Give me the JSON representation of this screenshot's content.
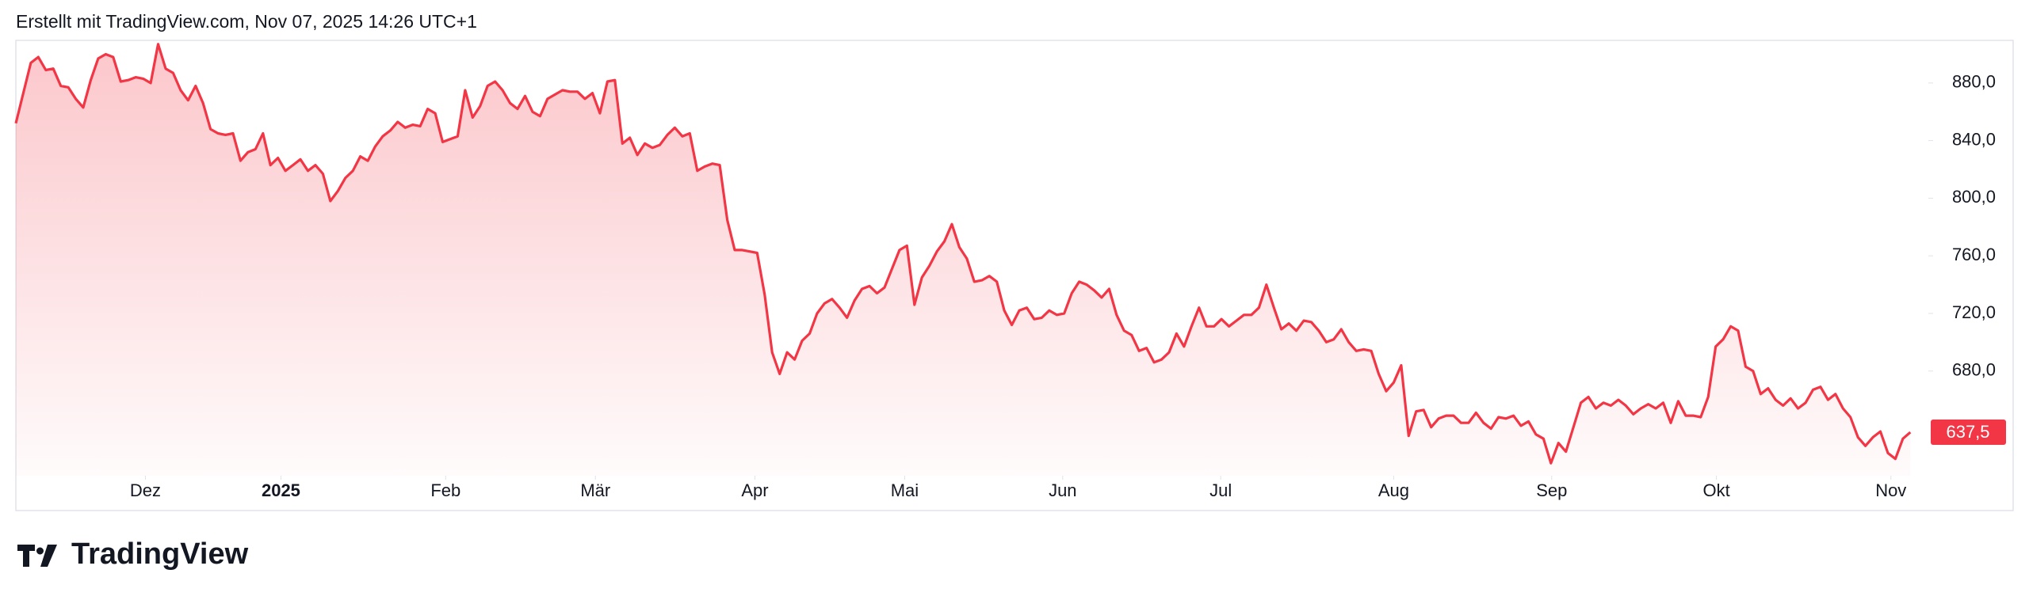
{
  "header": "Erstellt mit TradingView.com, Nov 07, 2025 14:26 UTC+1",
  "brand": "TradingView",
  "chart_data": {
    "type": "area",
    "color": "#f23645",
    "values": [
      852,
      873,
      894,
      898,
      889,
      890,
      878,
      877,
      869,
      863,
      882,
      897,
      900,
      898,
      881,
      882,
      884,
      883,
      880,
      907,
      890,
      887,
      875,
      868,
      878,
      866,
      848,
      845,
      844,
      845,
      826,
      832,
      834,
      845,
      823,
      828,
      819,
      823,
      827,
      819,
      823,
      817,
      798,
      805,
      814,
      819,
      829,
      826,
      836,
      843,
      847,
      853,
      849,
      851,
      850,
      862,
      859,
      839,
      841,
      843,
      875,
      856,
      864,
      878,
      881,
      875,
      866,
      862,
      871,
      860,
      857,
      869,
      872,
      875,
      874,
      874,
      869,
      873,
      859,
      881,
      882,
      838,
      842,
      830,
      838,
      835,
      837,
      844,
      849,
      843,
      845,
      819,
      822,
      824,
      823,
      785,
      764,
      764,
      763,
      762,
      733,
      693,
      678,
      693,
      688,
      701,
      706,
      720,
      727,
      730,
      724,
      717,
      729,
      737,
      739,
      734,
      738,
      751,
      764,
      767,
      726,
      745,
      753,
      763,
      770,
      782,
      766,
      758,
      742,
      743,
      746,
      742,
      722,
      712,
      722,
      724,
      716,
      717,
      722,
      719,
      720,
      734,
      742,
      740,
      736,
      731,
      737,
      719,
      708,
      705,
      694,
      696,
      686,
      688,
      693,
      706,
      697,
      711,
      724,
      711,
      711,
      716,
      711,
      715,
      719,
      719,
      724,
      740,
      724,
      709,
      713,
      708,
      715,
      714,
      708,
      700,
      702,
      709,
      700,
      694,
      695,
      694,
      678,
      666,
      672,
      684,
      635,
      652,
      653,
      641,
      647,
      649,
      649,
      644,
      644,
      651,
      644,
      640,
      648,
      647,
      649,
      642,
      645,
      636,
      633,
      616,
      630,
      624,
      641,
      658,
      662,
      654,
      658,
      656,
      660,
      656,
      650,
      654,
      657,
      654,
      658,
      644,
      659,
      649,
      649,
      648,
      662,
      697,
      702,
      711,
      708,
      683,
      680,
      664,
      668,
      660,
      656,
      661,
      654,
      658,
      667,
      669,
      660,
      664,
      654,
      648,
      634,
      628,
      634,
      638,
      623,
      619,
      633,
      637.5
    ],
    "last_label": "637,5",
    "xlim": [
      0,
      255.4
    ],
    "xticks": [
      {
        "value": 17.3,
        "label": "Dez"
      },
      {
        "value": 35.4,
        "label": "2025"
      },
      {
        "value": 57.4,
        "label": "Feb"
      },
      {
        "value": 77.4,
        "label": "Mär"
      },
      {
        "value": 98.7,
        "label": "Apr"
      },
      {
        "value": 118.7,
        "label": "Mai"
      },
      {
        "value": 139.8,
        "label": "Jun"
      },
      {
        "value": 160.9,
        "label": "Jul"
      },
      {
        "value": 184,
        "label": "Aug"
      },
      {
        "value": 205.1,
        "label": "Sep"
      },
      {
        "value": 227.1,
        "label": "Okt"
      },
      {
        "value": 250.4,
        "label": "Nov"
      }
    ],
    "ylim": [
      607.3,
      909.6
    ],
    "yticks": [
      {
        "value": 680,
        "label": "680,0"
      },
      {
        "value": 720,
        "label": "720,0"
      },
      {
        "value": 760,
        "label": "760,0"
      },
      {
        "value": 800,
        "label": "800,0"
      },
      {
        "value": 840,
        "label": "840,0"
      },
      {
        "value": 880,
        "label": "880,0"
      }
    ]
  }
}
